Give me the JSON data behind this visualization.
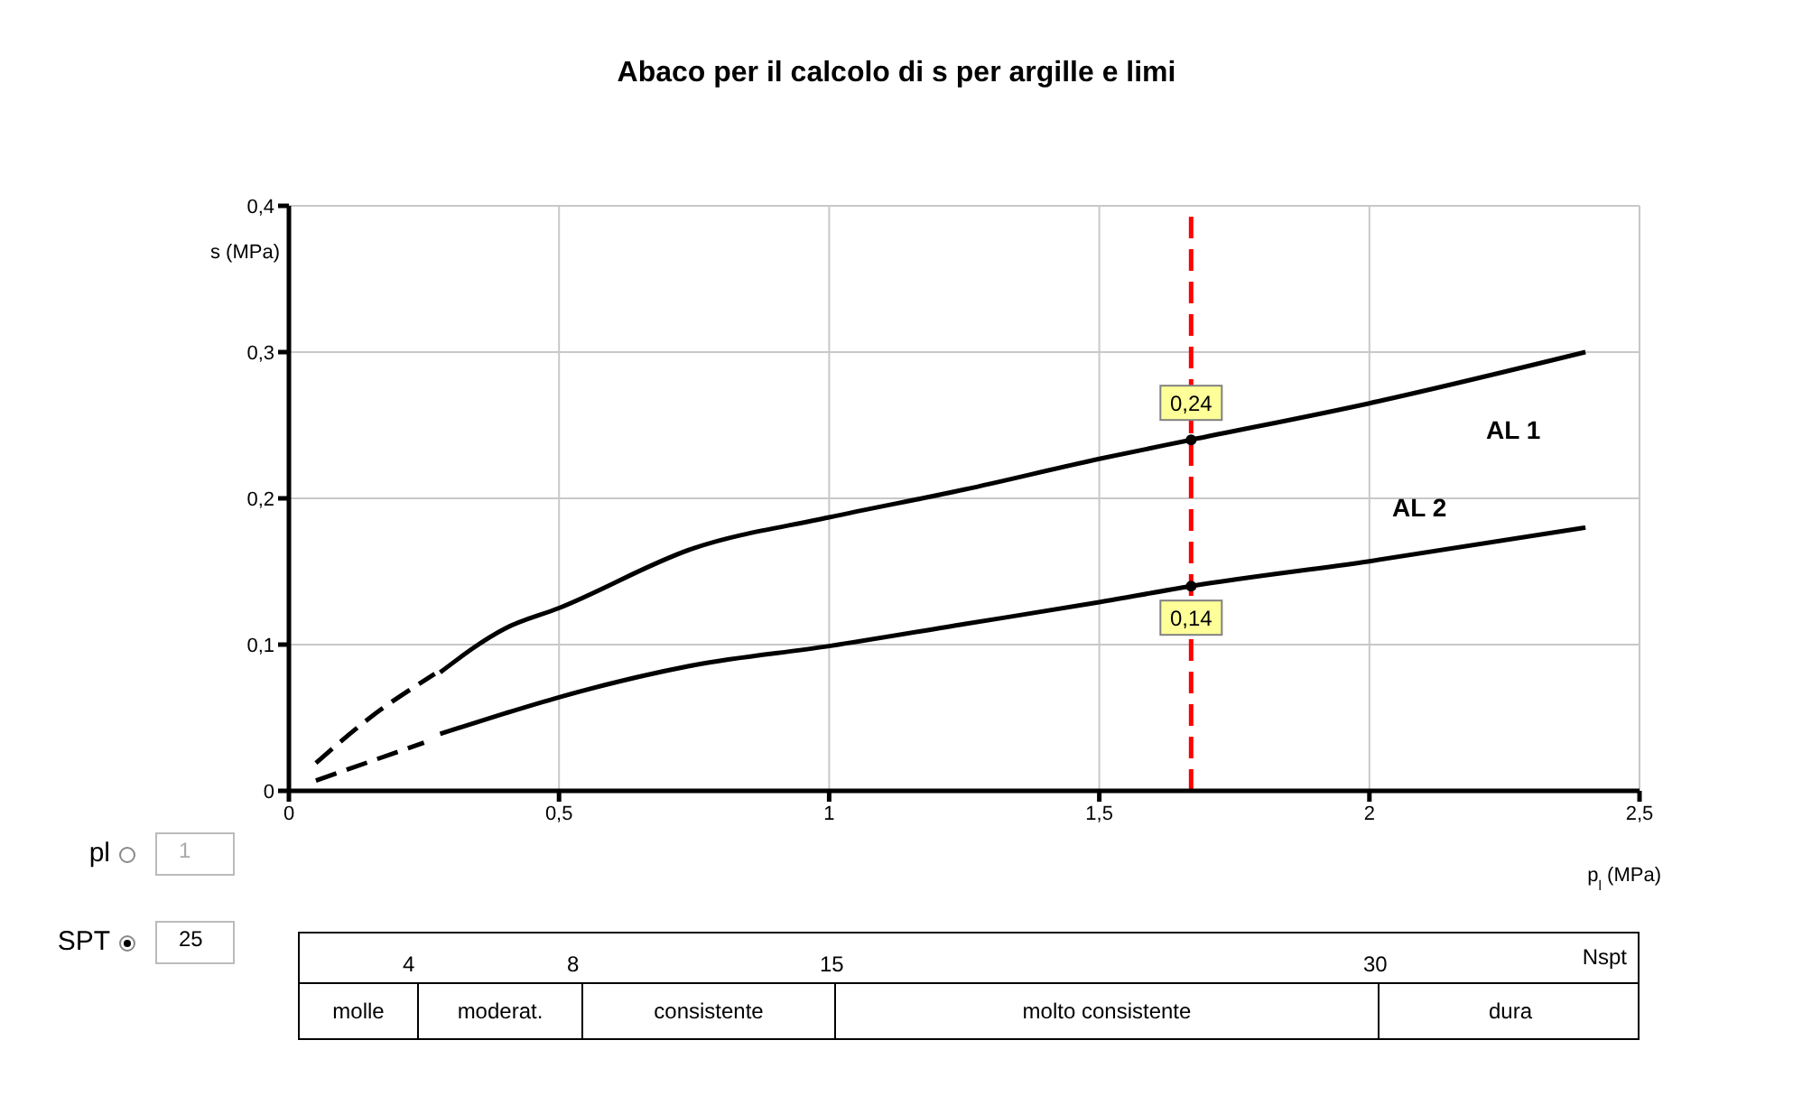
{
  "chart_data": [
    {
      "type": "line",
      "title": "Abaco per il calcolo di s per argille e limi",
      "xlabel": "p$_{l}$ (MPa)",
      "ylabel": "s (MPa)",
      "xlim": [
        0,
        2.5
      ],
      "xticks": [
        0,
        {
          "value": 0.5,
          "label": "0,5"
        },
        1,
        {
          "value": 1.5,
          "label": "1,5"
        },
        2,
        {
          "value": 2.5,
          "label": "2,5"
        }
      ],
      "ylim": [
        0,
        0.4
      ],
      "yticks": [
        0,
        {
          "value": 0.1,
          "label": "0,1"
        },
        {
          "value": 0.2,
          "label": "0,2"
        },
        {
          "value": 0.3,
          "label": "0,3"
        },
        {
          "value": 0.4,
          "label": "0,4"
        }
      ],
      "grid": true,
      "marker": "none",
      "series": [
        {
          "name": "AL 1",
          "color": "#000000",
          "line_style": "solid",
          "x": [
            0.28,
            0.4,
            0.5,
            0.75,
            1,
            1.25,
            1.5,
            1.67,
            2,
            2.4
          ],
          "values": [
            0.081,
            0.111,
            0.125,
            0.166,
            0.187,
            0.206,
            0.227,
            0.24,
            0.265,
            0.3
          ]
        },
        {
          "color": "#000000",
          "line_style": "dashed",
          "x": [
            0.05,
            0.15,
            0.27
          ],
          "values": [
            0.019,
            0.05,
            0.08
          ]
        },
        {
          "name": "AL 2",
          "color": "#000000",
          "line_style": "solid",
          "x": [
            0.28,
            0.4,
            0.5,
            0.75,
            1,
            1.25,
            1.5,
            1.67,
            2,
            2.4
          ],
          "values": [
            0.039,
            0.053,
            0.064,
            0.086,
            0.099,
            0.114,
            0.129,
            0.14,
            0.157,
            0.18
          ]
        },
        {
          "color": "#000000",
          "line_style": "dashed",
          "x": [
            0.05,
            0.15,
            0.25
          ],
          "values": [
            0.007,
            0.02,
            0.033
          ]
        }
      ],
      "ref_lines": [
        {
          "axis": "x",
          "value": 1.67,
          "color": "#ff0000",
          "line_style": "dashed"
        }
      ],
      "annotations": [
        {
          "text": "0,24",
          "x": 1.67,
          "y": 0.24
        },
        {
          "text": "0,14",
          "x": 1.67,
          "y": 0.14
        }
      ]
    },
    {
      "type": "other",
      "xlabel": "Nspt",
      "categories": [
        "molle",
        "moderat.",
        "consistente",
        "molto consistente",
        "dura"
      ],
      "annotations": [
        "pl",
        "1",
        "SPT",
        "25",
        "4",
        "8",
        "15",
        "30"
      ]
    }
  ]
}
